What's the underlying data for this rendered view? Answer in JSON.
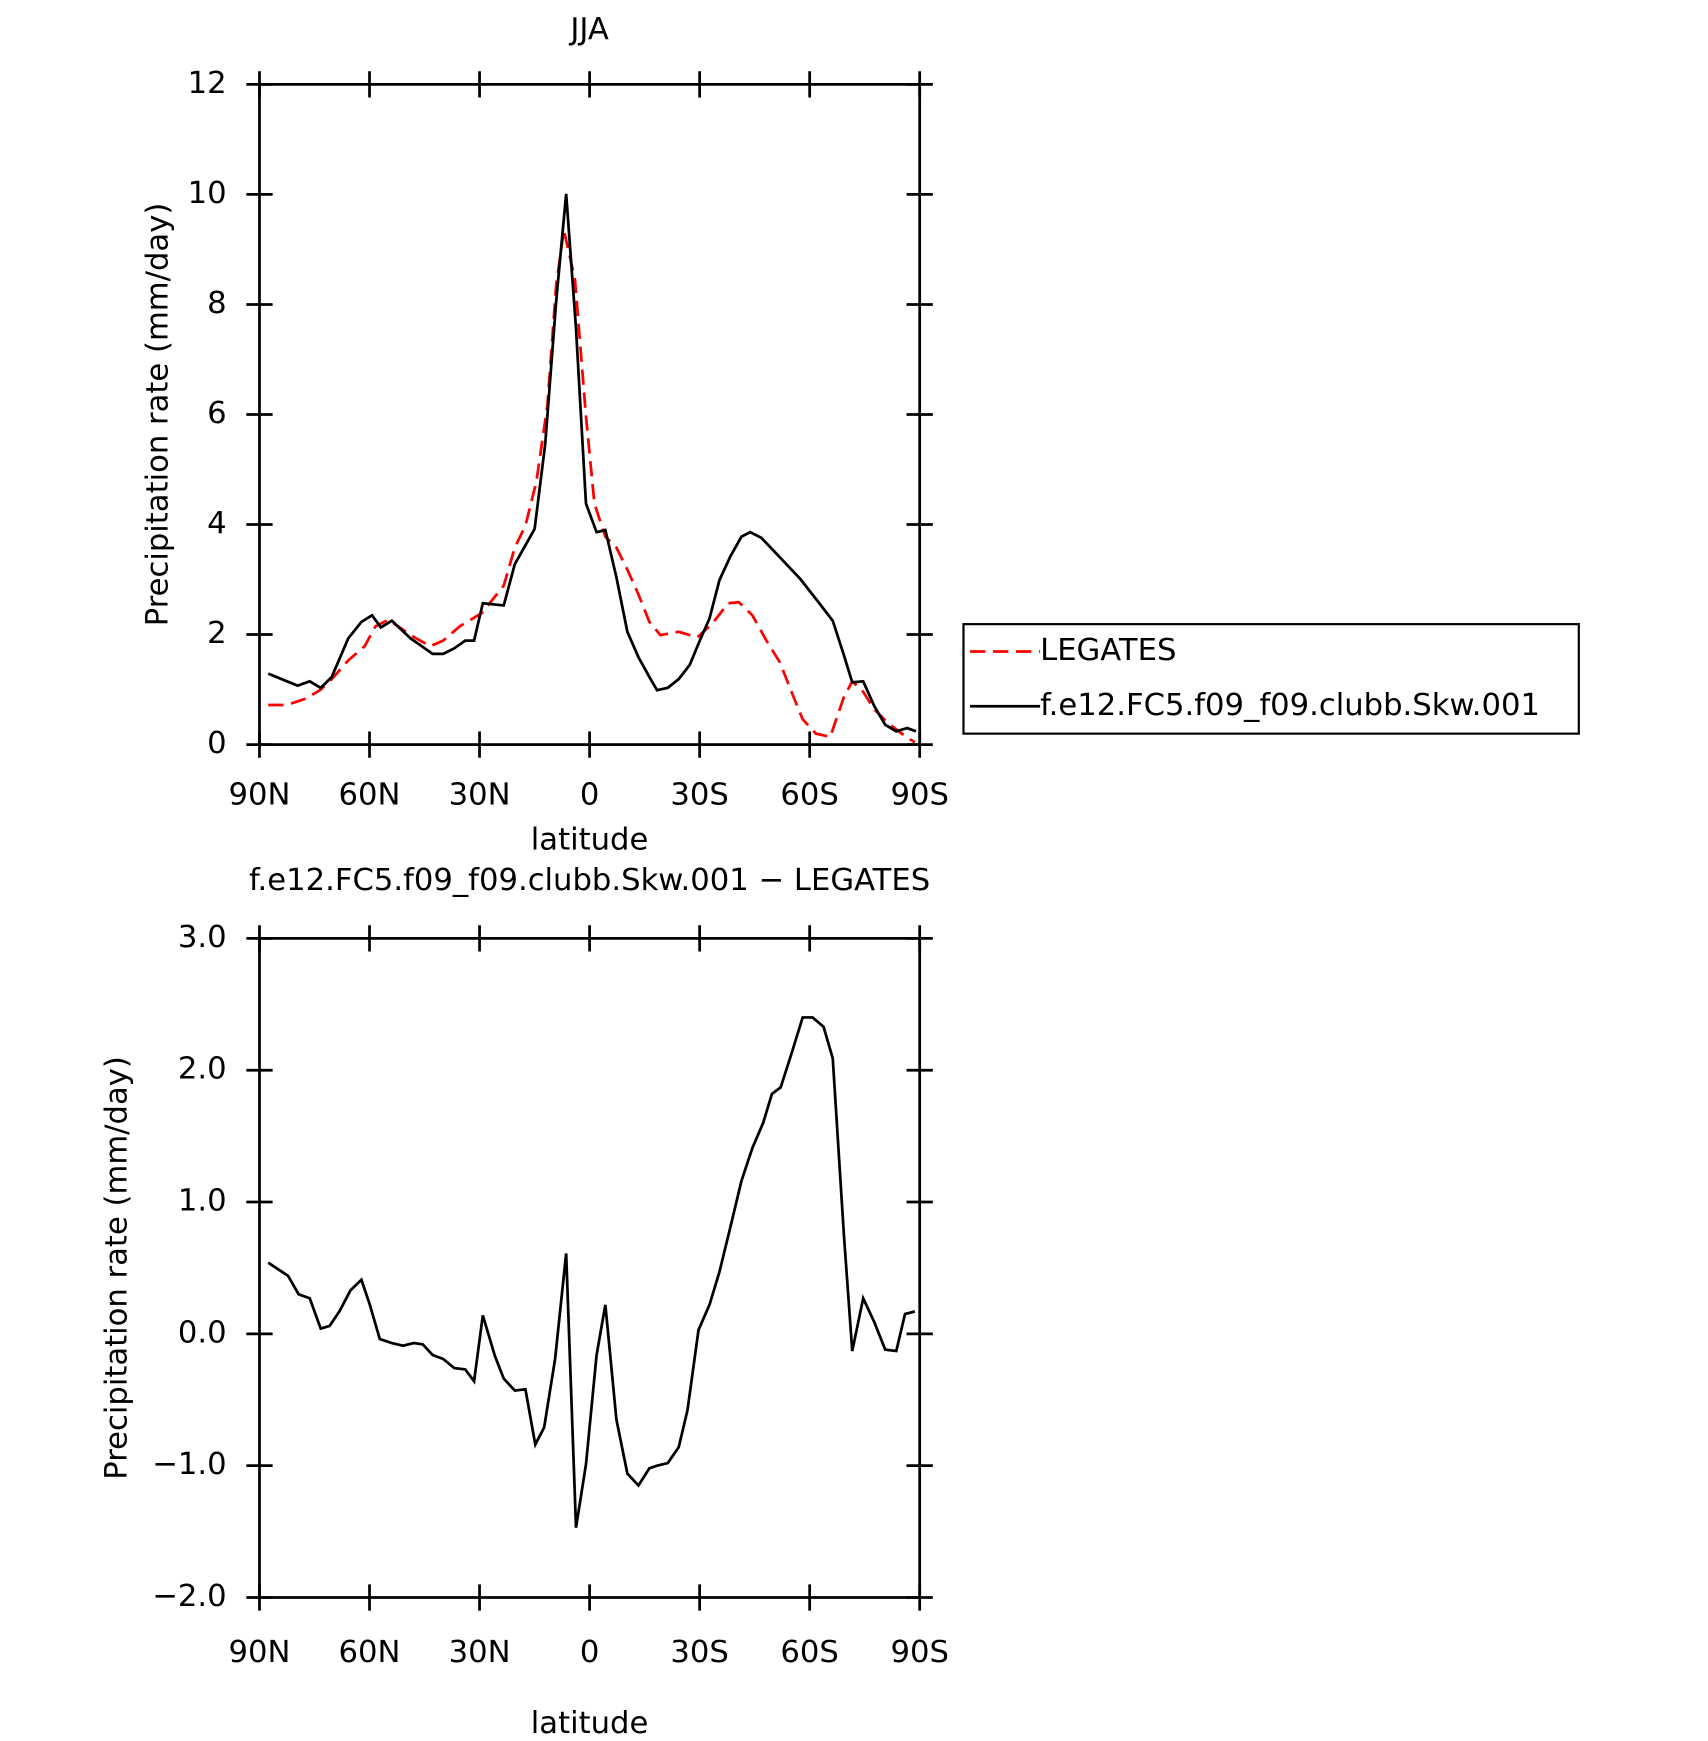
{
  "chart_data": [
    {
      "type": "line",
      "title": "JJA",
      "xlabel": "latitude",
      "ylabel": "Precipitation rate (mm/day)",
      "xlim": [
        90,
        -90
      ],
      "xticks": [
        {
          "value": 90,
          "label": "90N"
        },
        {
          "value": 60,
          "label": "60N"
        },
        {
          "value": 30,
          "label": "30N"
        },
        0,
        {
          "value": -30,
          "label": "30S"
        },
        {
          "value": -60,
          "label": "60S"
        },
        {
          "value": -90,
          "label": "90S"
        }
      ],
      "ylim": [
        0,
        12
      ],
      "yticks": [
        0,
        2,
        4,
        6,
        8,
        10,
        12
      ],
      "legend": "right",
      "series": [
        {
          "name": "LEGATES",
          "color": "#ff0000",
          "linestyle": "dashed",
          "x": [
            87.6,
            82.5,
            77.2,
            73.3,
            70.3,
            65.8,
            61.3,
            58.4,
            54.8,
            51.8,
            47.3,
            43.4,
            39.9,
            35.4,
            29.4,
            23.4,
            20.4,
            17.5,
            14.5,
            11.5,
            9.1,
            7.0,
            4.0,
            1.0,
            -1.3,
            -4.3,
            -7.3,
            -10.3,
            -13.3,
            -16.3,
            -19.3,
            -24.3,
            -29.4,
            -33.3,
            -37.8,
            -40.7,
            -44.4,
            -48.2,
            -51.9,
            -54.8,
            -58.1,
            -61.7,
            -65.6,
            -69.3,
            -71.6,
            -74.6,
            -77.6,
            -81.2,
            -85.1,
            -88.7
          ],
          "values": [
            0.72,
            0.72,
            0.84,
            1.0,
            1.19,
            1.53,
            1.79,
            2.15,
            2.27,
            2.13,
            1.93,
            1.79,
            1.89,
            2.15,
            2.39,
            2.89,
            3.58,
            3.98,
            4.78,
            6.17,
            8.36,
            9.35,
            8.46,
            5.97,
            4.38,
            3.78,
            3.58,
            3.18,
            2.73,
            2.23,
            1.99,
            2.05,
            1.95,
            2.19,
            2.57,
            2.59,
            2.35,
            1.89,
            1.49,
            1.0,
            0.46,
            0.2,
            0.14,
            0.86,
            1.15,
            0.96,
            0.64,
            0.4,
            0.2,
            0.04
          ]
        },
        {
          "name": "f.e12.FC5.f09_f09.clubb.Skw.001",
          "color": "#000000",
          "linestyle": "solid",
          "x": [
            87.6,
            82.5,
            79.6,
            76.3,
            73.3,
            70.3,
            65.8,
            62.2,
            59.3,
            56.9,
            53.9,
            48.8,
            45.8,
            42.8,
            39.9,
            36.9,
            33.9,
            31.5,
            29.1,
            23.4,
            20.4,
            15.0,
            12.1,
            9.1,
            6.4,
            3.7,
            1.0,
            -1.9,
            -4.3,
            -7.3,
            -10.3,
            -13.3,
            -16.3,
            -18.4,
            -21.3,
            -24.3,
            -27.3,
            -30.3,
            -32.7,
            -35.4,
            -38.4,
            -41.4,
            -43.8,
            -46.8,
            -51.9,
            -57.3,
            -62.4,
            -66.3,
            -69.3,
            -71.6,
            -74.6,
            -77.6,
            -80.6,
            -83.6,
            -86.6,
            -89.0
          ],
          "values": [
            1.29,
            1.15,
            1.07,
            1.15,
            1.03,
            1.23,
            1.93,
            2.23,
            2.35,
            2.13,
            2.25,
            1.93,
            1.79,
            1.65,
            1.65,
            1.75,
            1.89,
            1.89,
            2.57,
            2.53,
            3.28,
            3.92,
            5.47,
            8.06,
            10.01,
            7.56,
            4.38,
            3.86,
            3.9,
            3.04,
            2.05,
            1.59,
            1.23,
            0.99,
            1.03,
            1.19,
            1.45,
            1.93,
            2.29,
            2.99,
            3.42,
            3.78,
            3.86,
            3.76,
            3.4,
            3.02,
            2.59,
            2.25,
            1.63,
            1.13,
            1.15,
            0.7,
            0.36,
            0.24,
            0.3,
            0.24
          ]
        }
      ]
    },
    {
      "type": "line",
      "title": "f.e12.FC5.f09_f09.clubb.Skw.001 − LEGATES",
      "xlabel": "latitude",
      "ylabel": "Precipitation rate (mm/day)",
      "xlim": [
        90,
        -90
      ],
      "xticks": [
        {
          "value": 90,
          "label": "90N"
        },
        {
          "value": 60,
          "label": "60N"
        },
        {
          "value": 30,
          "label": "30N"
        },
        0,
        {
          "value": -30,
          "label": "30S"
        },
        {
          "value": -60,
          "label": "60S"
        },
        {
          "value": -90,
          "label": "90S"
        }
      ],
      "ylim": [
        -2,
        3
      ],
      "yticks": [
        {
          "value": -2,
          "label": "−2.0"
        },
        {
          "value": -1,
          "label": "−1.0"
        },
        {
          "value": 0,
          "label": "0.0"
        },
        {
          "value": 1,
          "label": "1.0"
        },
        {
          "value": 2,
          "label": "2.0"
        },
        {
          "value": 3,
          "label": "3.0"
        }
      ],
      "series": [
        {
          "color": "#000000",
          "linestyle": "solid",
          "x": [
            87.6,
            82.2,
            79.3,
            76.3,
            73.3,
            70.9,
            68.2,
            65.2,
            62.2,
            59.9,
            57.2,
            53.9,
            50.9,
            47.9,
            45.5,
            42.8,
            39.9,
            36.9,
            33.9,
            31.5,
            29.1,
            25.8,
            23.4,
            20.4,
            17.5,
            14.8,
            12.4,
            9.4,
            6.4,
            3.7,
            1.0,
            -1.9,
            -4.3,
            -7.3,
            -10.3,
            -13.3,
            -16.3,
            -18.4,
            -21.3,
            -24.3,
            -26.7,
            -29.7,
            -32.7,
            -35.4,
            -38.4,
            -41.4,
            -44.4,
            -47.3,
            -49.7,
            -52.1,
            -55.1,
            -58.1,
            -60.8,
            -63.8,
            -66.3,
            -69.3,
            -71.6,
            -74.6,
            -77.6,
            -80.6,
            -83.6,
            -86.0,
            -88.7
          ],
          "values": [
            0.54,
            0.44,
            0.3,
            0.27,
            0.04,
            0.06,
            0.17,
            0.33,
            0.41,
            0.22,
            -0.04,
            -0.07,
            -0.09,
            -0.07,
            -0.08,
            -0.16,
            -0.19,
            -0.26,
            -0.27,
            -0.36,
            0.14,
            -0.17,
            -0.34,
            -0.43,
            -0.42,
            -0.84,
            -0.71,
            -0.19,
            0.61,
            -1.47,
            -0.99,
            -0.16,
            0.22,
            -0.65,
            -1.06,
            -1.15,
            -1.02,
            -1.0,
            -0.98,
            -0.86,
            -0.58,
            0.03,
            0.22,
            0.47,
            0.81,
            1.16,
            1.41,
            1.6,
            1.82,
            1.87,
            2.13,
            2.4,
            2.4,
            2.33,
            2.09,
            0.76,
            -0.13,
            0.27,
            0.09,
            -0.12,
            -0.13,
            0.15,
            0.17
          ]
        }
      ]
    }
  ]
}
